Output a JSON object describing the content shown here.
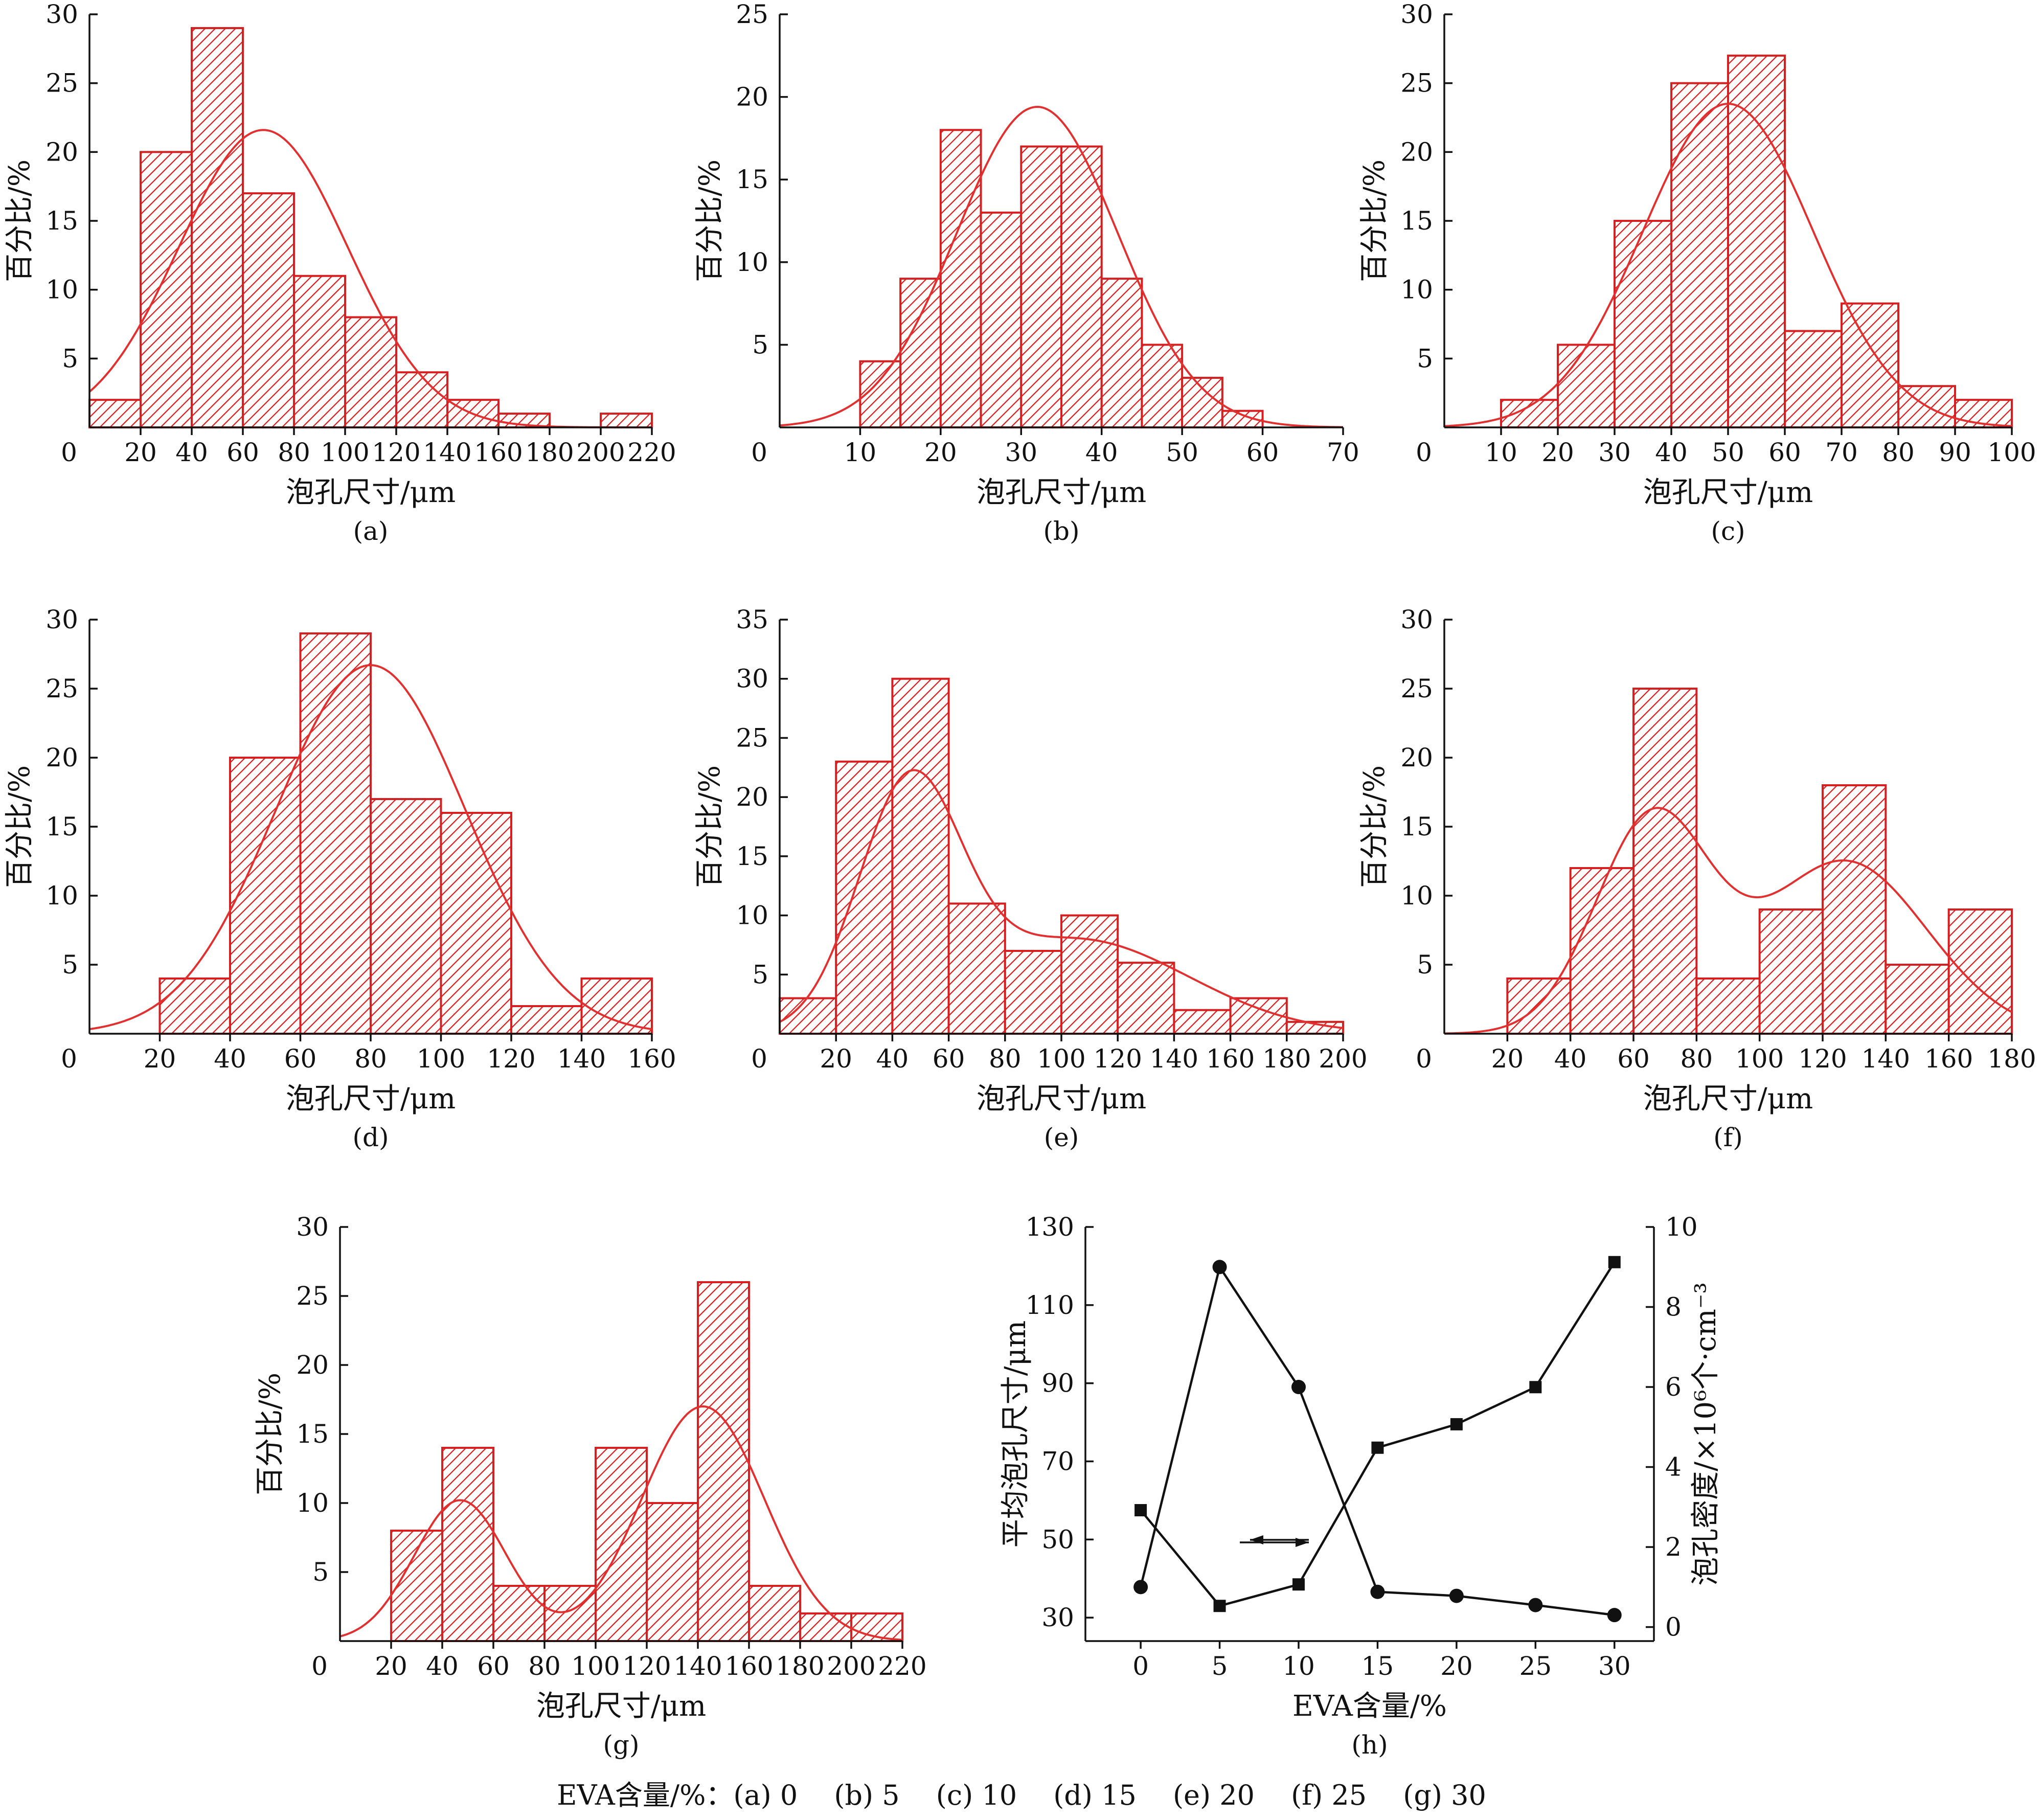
{
  "colors": {
    "bar_stroke": "#d42020",
    "hatch": "#d42020",
    "curve": "#e03030",
    "axis": "#111111",
    "line": "#111111"
  },
  "chart_data": [
    {
      "panel": "(a)",
      "type": "bar",
      "bin_edges": [
        0,
        20,
        40,
        60,
        80,
        100,
        120,
        140,
        160,
        180,
        200,
        220
      ],
      "values": [
        2,
        20,
        29,
        17,
        11,
        8,
        4,
        2,
        1,
        0,
        1
      ],
      "xticks": [
        0,
        20,
        40,
        60,
        80,
        100,
        120,
        140,
        160,
        180,
        200,
        220
      ],
      "xlim": [
        0,
        220
      ],
      "ylim": [
        0,
        30
      ],
      "yticks": [
        5,
        10,
        15,
        20,
        25,
        30
      ],
      "xlabel": "泡孔尺寸/μm",
      "ylabel": "百分比/%",
      "fit": [
        {
          "mu": 68,
          "sigma": 33,
          "amp": 21.6
        }
      ]
    },
    {
      "panel": "(b)",
      "type": "bar",
      "bin_edges": [
        0,
        5,
        10,
        15,
        20,
        25,
        30,
        35,
        40,
        45,
        50,
        55,
        60,
        65,
        70
      ],
      "values": [
        0,
        0,
        4,
        9,
        18,
        13,
        17,
        17,
        9,
        5,
        3,
        1,
        0,
        0
      ],
      "xticks": [
        0,
        10,
        20,
        30,
        40,
        50,
        60,
        70
      ],
      "xlim": [
        0,
        70
      ],
      "ylim": [
        0,
        25
      ],
      "yticks": [
        5,
        10,
        15,
        20,
        25
      ],
      "xlabel": "泡孔尺寸/μm",
      "ylabel": "百分比/%",
      "fit": [
        {
          "mu": 32,
          "sigma": 10,
          "amp": 19.4
        }
      ]
    },
    {
      "panel": "(c)",
      "type": "bar",
      "bin_edges": [
        0,
        10,
        20,
        30,
        40,
        50,
        60,
        70,
        80,
        90,
        100
      ],
      "values": [
        0,
        2,
        6,
        15,
        25,
        27,
        7,
        9,
        3,
        2
      ],
      "xticks": [
        0,
        10,
        20,
        30,
        40,
        50,
        60,
        70,
        80,
        90,
        100
      ],
      "xlim": [
        0,
        100
      ],
      "ylim": [
        0,
        30
      ],
      "yticks": [
        5,
        10,
        15,
        20,
        25,
        30
      ],
      "xlabel": "泡孔尺寸/μm",
      "ylabel": "百分比/%",
      "fit": [
        {
          "mu": 50,
          "sigma": 15,
          "amp": 23.5
        }
      ]
    },
    {
      "panel": "(d)",
      "type": "bar",
      "bin_edges": [
        0,
        20,
        40,
        60,
        80,
        100,
        120,
        140,
        160
      ],
      "values": [
        0,
        4,
        20,
        29,
        17,
        16,
        2,
        4
      ],
      "xticks": [
        0,
        20,
        40,
        60,
        80,
        100,
        120,
        140,
        160
      ],
      "xlim": [
        0,
        160
      ],
      "ylim": [
        0,
        30
      ],
      "yticks": [
        5,
        10,
        15,
        20,
        25,
        30
      ],
      "xlabel": "泡孔尺寸/μm",
      "ylabel": "百分比/%",
      "fit": [
        {
          "mu": 80,
          "sigma": 27,
          "amp": 26.7
        }
      ]
    },
    {
      "panel": "(e)",
      "type": "bar",
      "bin_edges": [
        0,
        20,
        40,
        60,
        80,
        100,
        120,
        140,
        160,
        180,
        200
      ],
      "values": [
        3,
        23,
        30,
        11,
        7,
        10,
        6,
        2,
        3,
        1
      ],
      "xticks": [
        0,
        20,
        40,
        60,
        80,
        100,
        120,
        140,
        160,
        180,
        200
      ],
      "xlim": [
        0,
        200
      ],
      "ylim": [
        0,
        35
      ],
      "yticks": [
        5,
        10,
        15,
        20,
        25,
        30,
        35
      ],
      "xlabel": "泡孔尺寸/μm",
      "ylabel": "百分比/%",
      "fit": [
        {
          "mu": 46,
          "sigma": 18,
          "amp": 19.5
        },
        {
          "mu": 105,
          "sigma": 40,
          "amp": 8
        }
      ]
    },
    {
      "panel": "(f)",
      "type": "bar",
      "bin_edges": [
        0,
        20,
        40,
        60,
        80,
        100,
        120,
        140,
        160,
        180
      ],
      "values": [
        0,
        4,
        12,
        25,
        4,
        9,
        18,
        5,
        9
      ],
      "xticks": [
        0,
        20,
        40,
        60,
        80,
        100,
        120,
        140,
        160,
        180
      ],
      "xlim": [
        0,
        180
      ],
      "ylim": [
        0,
        30
      ],
      "yticks": [
        5,
        10,
        15,
        20,
        25,
        30
      ],
      "xlabel": "泡孔尺寸/μm",
      "ylabel": "百分比/%",
      "fit": [
        {
          "mu": 66,
          "sigma": 18,
          "amp": 15.5
        },
        {
          "mu": 127,
          "sigma": 26,
          "amp": 12.5
        }
      ]
    },
    {
      "panel": "(g)",
      "type": "bar",
      "bin_edges": [
        0,
        20,
        40,
        60,
        80,
        100,
        120,
        140,
        160,
        180,
        200,
        220
      ],
      "values": [
        0,
        8,
        14,
        4,
        4,
        14,
        10,
        26,
        4,
        2,
        2
      ],
      "xticks": [
        0,
        20,
        40,
        60,
        80,
        100,
        120,
        140,
        160,
        180,
        200,
        220
      ],
      "xlim": [
        0,
        220
      ],
      "ylim": [
        0,
        30
      ],
      "yticks": [
        5,
        10,
        15,
        20,
        25,
        30
      ],
      "xlabel": "泡孔尺寸/μm",
      "ylabel": "百分比/%",
      "fit": [
        {
          "mu": 47,
          "sigma": 18,
          "amp": 10.2
        },
        {
          "mu": 142,
          "sigma": 24,
          "amp": 17
        }
      ]
    },
    {
      "panel": "(h)",
      "type": "line",
      "x": [
        0,
        5,
        10,
        15,
        20,
        25,
        30
      ],
      "xlim": [
        -3.5,
        32.5
      ],
      "xticks": [
        0,
        5,
        10,
        15,
        20,
        25,
        30
      ],
      "xlabel": "EVA含量/%",
      "left_axis": {
        "label": "平均泡孔尺寸/μm",
        "ylim": [
          24,
          130
        ],
        "yticks": [
          30,
          50,
          70,
          90,
          110,
          130
        ]
      },
      "right_axis": {
        "label": "泡孔密度/×10⁶个·cm⁻³",
        "ylim": [
          -0.35,
          10
        ],
        "yticks": [
          0,
          2,
          4,
          6,
          8,
          10
        ]
      },
      "series": [
        {
          "axis": "left",
          "marker": "square",
          "values": [
            57.5,
            33,
            38.5,
            73.5,
            79.5,
            89,
            121
          ]
        },
        {
          "axis": "right",
          "marker": "circle",
          "values": [
            1,
            9,
            6,
            0.88,
            0.78,
            0.55,
            0.3
          ]
        }
      ]
    }
  ],
  "legend_text": "EVA含量/%：(a) 0　 (b) 5　 (c) 10　 (d) 15　 (e) 20　 (f) 25　 (g) 30"
}
